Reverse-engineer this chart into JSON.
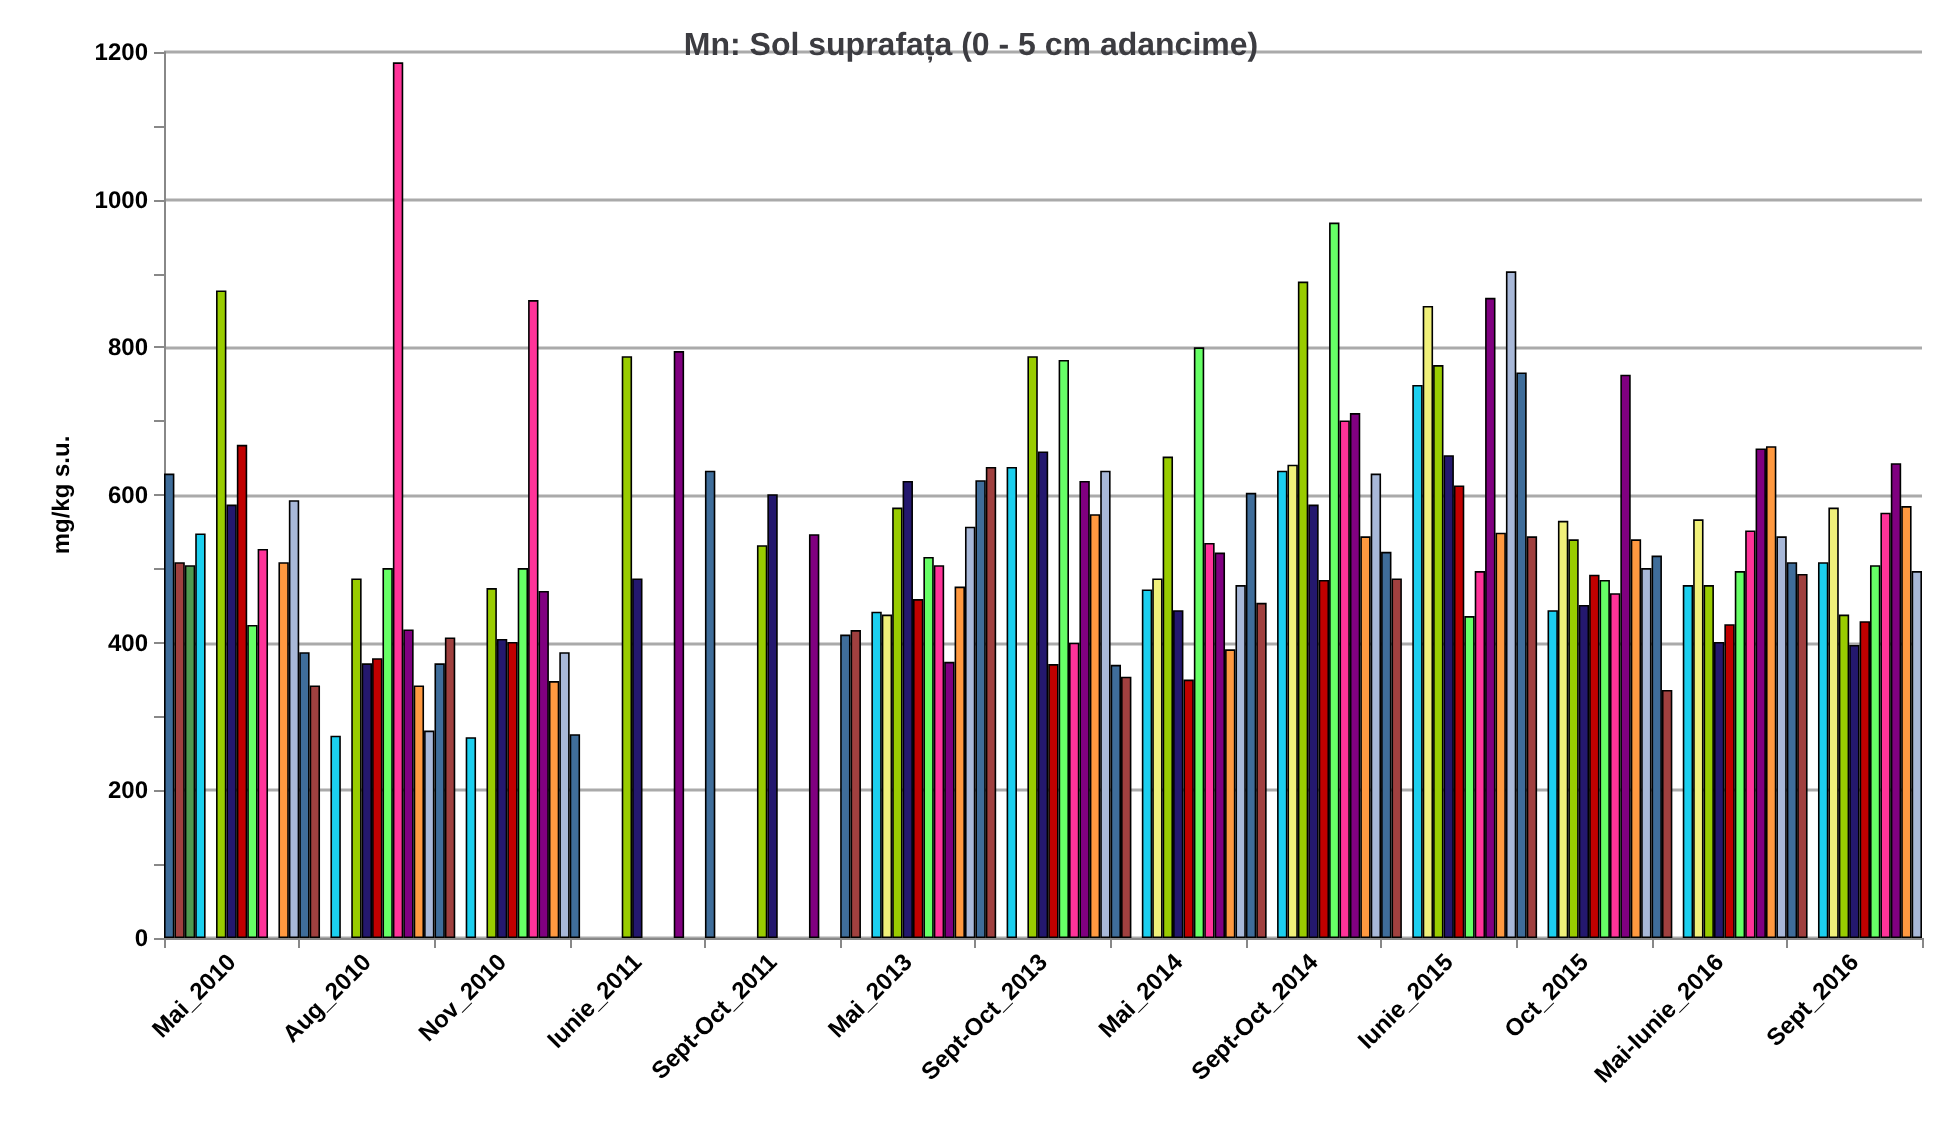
{
  "chart_data": {
    "type": "bar",
    "title": "Mn: Sol suprafața (0 - 5 cm adancime)",
    "ylabel": "mg/kg s.u.",
    "categories": [
      "Mai_2010",
      "Aug_2010",
      "Nov_2010",
      "Iunie_2011",
      "Sept-Oct_2011",
      "Mai_2013",
      "Sept-Oct_2013",
      "Mai_2014",
      "Sept-Oct_2014",
      "Iunie_2015",
      "Oct_2015",
      "Mai-Iunie_2016",
      "Sept_2016"
    ],
    "series": [
      {
        "color": "#3f6d9a",
        "values": [
          629,
          387,
          372,
          276,
          633,
          411,
          620,
          370,
          603,
          523,
          766,
          518,
          509
        ]
      },
      {
        "color": "#a0403f",
        "values": [
          509,
          342,
          407,
          null,
          null,
          417,
          638,
          354,
          454,
          487,
          544,
          336,
          493
        ]
      },
      {
        "color": "#4e9a4e",
        "values": [
          505,
          null,
          null,
          null,
          null,
          null,
          null,
          null,
          null,
          null,
          null,
          null,
          null
        ]
      },
      {
        "color": "#1ccfef",
        "values": [
          548,
          274,
          272,
          null,
          null,
          442,
          638,
          472,
          633,
          749,
          444,
          478,
          509
        ]
      },
      {
        "color": "#f0f07a",
        "values": [
          null,
          null,
          null,
          null,
          null,
          438,
          null,
          487,
          641,
          856,
          565,
          567,
          583
        ]
      },
      {
        "color": "#99cc00",
        "values": [
          877,
          487,
          474,
          788,
          532,
          583,
          788,
          652,
          889,
          776,
          540,
          478,
          438
        ]
      },
      {
        "color": "#24186e",
        "values": [
          587,
          372,
          405,
          487,
          601,
          619,
          659,
          444,
          587,
          654,
          451,
          401,
          397
        ]
      },
      {
        "color": "#c00000",
        "values": [
          668,
          379,
          401,
          null,
          null,
          459,
          371,
          350,
          485,
          613,
          492,
          425,
          429
        ]
      },
      {
        "color": "#66ff66",
        "values": [
          424,
          501,
          501,
          null,
          null,
          516,
          783,
          800,
          969,
          436,
          485,
          497,
          505
        ]
      },
      {
        "color": "#ff3399",
        "values": [
          527,
          1186,
          864,
          null,
          null,
          505,
          400,
          535,
          701,
          497,
          467,
          552,
          576
        ]
      },
      {
        "color": "#800080",
        "values": [
          null,
          418,
          470,
          795,
          547,
          374,
          619,
          522,
          711,
          867,
          763,
          663,
          643
        ]
      },
      {
        "color": "#ff9940",
        "values": [
          509,
          342,
          348,
          null,
          null,
          476,
          574,
          391,
          544,
          549,
          540,
          666,
          585
        ]
      },
      {
        "color": "#a8b8d8",
        "values": [
          593,
          281,
          387,
          null,
          null,
          557,
          633,
          478,
          629,
          903,
          501,
          544,
          497
        ]
      }
    ],
    "ylim": [
      0,
      1200
    ],
    "yticks": [
      0,
      {
        "value": 100,
        "label": null
      },
      200,
      {
        "value": 300,
        "label": null
      },
      400,
      {
        "value": 500,
        "label": null
      },
      600,
      {
        "value": 700,
        "label": null
      },
      800,
      {
        "value": 900,
        "label": null
      },
      1000,
      {
        "value": 1100,
        "label": null
      },
      1200
    ],
    "grid": "y"
  }
}
